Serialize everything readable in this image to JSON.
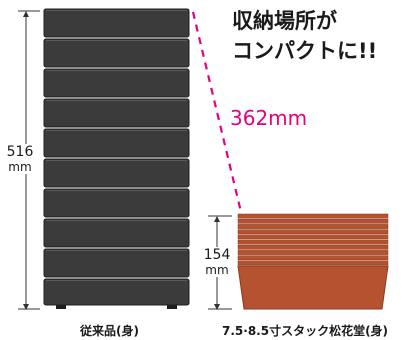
{
  "headline": {
    "line1": "収納場所が",
    "line2": "コンパクトに!!"
  },
  "comparison_label": "362mm",
  "old_product": {
    "height_value": "516",
    "height_unit": "mm",
    "caption": "従来品(身)",
    "tray_count": 10
  },
  "new_product": {
    "height_value": "154",
    "height_unit": "mm",
    "caption": "7.5·8.5寸スタック松花堂(身)",
    "tray_count": 10
  },
  "colors": {
    "old_tray": "#3b3b3b",
    "old_tray_edge": "#1f1f1f",
    "new_tray": "#b5522f",
    "new_tray_line": "#f3d2c2",
    "highlight": "#e6007e"
  }
}
